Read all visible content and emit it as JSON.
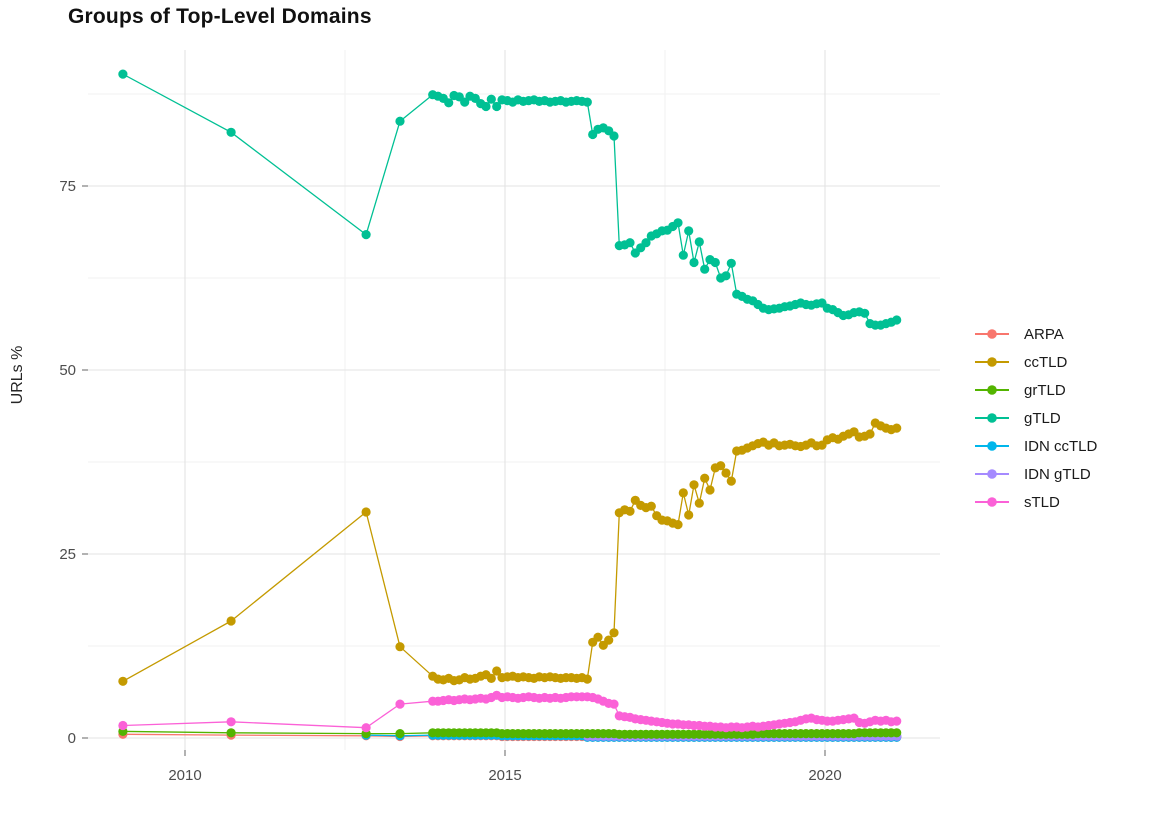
{
  "chart_data": {
    "type": "line",
    "title": "Groups of Top-Level Domains",
    "ylabel": "URLs %",
    "xlabel": "",
    "x_ticks": [
      2010,
      2015,
      2020
    ],
    "y_ticks": [
      0,
      25,
      50,
      75
    ],
    "x_minor": [
      2012.5,
      2017.5
    ],
    "y_minor": [
      12.5,
      37.5,
      62.5,
      87.5
    ],
    "xlim": [
      2008.5,
      2021.8
    ],
    "ylim": [
      -1.6,
      93.5
    ],
    "grid": true,
    "legend_position": "right",
    "monthly_step_years": 0.08333,
    "draw_order": [
      "ARPA",
      "IDN ccTLD",
      "IDN gTLD",
      "grTLD",
      "ccTLD",
      "gTLD",
      "sTLD"
    ],
    "series": [
      {
        "name": "ARPA",
        "color": "#F8766D",
        "early": [
          [
            2009.03,
            0.5
          ],
          [
            2010.72,
            0.4
          ],
          [
            2012.83,
            0.3
          ],
          [
            2013.36,
            0.2
          ]
        ],
        "monthly_start": 2013.87,
        "monthly": [
          0.3,
          0.3,
          0.3,
          0.3,
          0.3,
          0.3,
          0.3,
          0.3,
          0.3,
          0.3,
          0.3,
          0.3,
          0.3,
          0.2,
          0.2,
          0.2,
          0.2,
          0.2,
          0.2,
          0.2,
          0.2,
          0.2,
          0.2,
          0.2,
          0.2,
          0.2,
          0.2,
          0.2,
          0.2,
          0.1,
          0.1,
          0.1,
          0.1,
          0.1,
          0.1,
          0.1,
          0.1,
          0.1,
          0.1,
          0.1,
          0.1,
          0.1,
          0.1,
          0.1,
          0.1,
          0.1,
          0.1,
          0.1,
          0.1,
          0.1,
          0.1,
          0.1,
          0.1,
          0.1,
          0.1,
          0.1,
          0.1,
          0.1,
          0.1,
          0.1,
          0.1,
          0.1,
          0.1,
          0.1,
          0.1,
          0.1,
          0.1,
          0.1,
          0.1,
          0.1,
          0.1,
          0.1,
          0.1,
          0.1,
          0.1,
          0.1,
          0.1,
          0.1,
          0.1,
          0.1,
          0.1,
          0.1,
          0.1,
          0.1,
          0.1,
          0.1,
          0.1,
          0.1
        ]
      },
      {
        "name": "ccTLD",
        "color": "#C49A00",
        "early": [
          [
            2009.03,
            7.7
          ],
          [
            2010.72,
            15.9
          ],
          [
            2012.83,
            30.7
          ],
          [
            2013.36,
            12.4
          ]
        ],
        "monthly_start": 2013.87,
        "monthly": [
          8.4,
          8.0,
          7.9,
          8.1,
          7.8,
          7.9,
          8.2,
          8.0,
          8.1,
          8.4,
          8.6,
          8.1,
          9.1,
          8.2,
          8.3,
          8.4,
          8.2,
          8.3,
          8.2,
          8.1,
          8.3,
          8.2,
          8.3,
          8.2,
          8.1,
          8.2,
          8.2,
          8.1,
          8.2,
          8.0,
          13.0,
          13.7,
          12.6,
          13.3,
          14.3,
          30.6,
          31.0,
          30.8,
          32.3,
          31.6,
          31.3,
          31.5,
          30.2,
          29.6,
          29.5,
          29.2,
          29.0,
          33.3,
          30.3,
          34.4,
          31.9,
          35.3,
          33.7,
          36.7,
          37.0,
          36.0,
          34.9,
          39.0,
          39.1,
          39.4,
          39.7,
          40.0,
          40.2,
          39.8,
          40.1,
          39.7,
          39.8,
          39.9,
          39.7,
          39.6,
          39.8,
          40.1,
          39.7,
          39.8,
          40.5,
          40.8,
          40.6,
          41.0,
          41.3,
          41.6,
          40.9,
          41.0,
          41.3,
          42.8,
          42.4,
          42.1,
          41.9,
          42.1
        ]
      },
      {
        "name": "grTLD",
        "color": "#53B400",
        "early": [
          [
            2009.03,
            0.9
          ],
          [
            2010.72,
            0.7
          ],
          [
            2012.83,
            0.6
          ],
          [
            2013.36,
            0.6
          ]
        ],
        "monthly_start": 2013.87,
        "monthly": [
          0.7,
          0.7,
          0.7,
          0.7,
          0.7,
          0.7,
          0.7,
          0.7,
          0.7,
          0.7,
          0.7,
          0.7,
          0.7,
          0.6,
          0.6,
          0.6,
          0.6,
          0.6,
          0.6,
          0.6,
          0.6,
          0.6,
          0.6,
          0.6,
          0.6,
          0.6,
          0.6,
          0.6,
          0.6,
          0.6,
          0.6,
          0.6,
          0.6,
          0.6,
          0.6,
          0.5,
          0.5,
          0.5,
          0.5,
          0.5,
          0.5,
          0.5,
          0.5,
          0.5,
          0.5,
          0.5,
          0.5,
          0.5,
          0.5,
          0.5,
          0.5,
          0.5,
          0.5,
          0.5,
          0.5,
          0.5,
          0.5,
          0.5,
          0.5,
          0.5,
          0.5,
          0.6,
          0.6,
          0.6,
          0.6,
          0.6,
          0.6,
          0.6,
          0.6,
          0.6,
          0.6,
          0.6,
          0.6,
          0.6,
          0.6,
          0.6,
          0.6,
          0.6,
          0.6,
          0.6,
          0.7,
          0.7,
          0.7,
          0.7,
          0.7,
          0.7,
          0.7,
          0.7
        ]
      },
      {
        "name": "gTLD",
        "color": "#00C094",
        "early": [
          [
            2009.03,
            90.2
          ],
          [
            2010.72,
            82.3
          ],
          [
            2012.83,
            68.4
          ],
          [
            2013.36,
            83.8
          ]
        ],
        "monthly_start": 2013.87,
        "monthly": [
          87.4,
          87.2,
          86.9,
          86.3,
          87.3,
          87.1,
          86.4,
          87.2,
          86.9,
          86.2,
          85.8,
          86.8,
          85.8,
          86.7,
          86.6,
          86.4,
          86.7,
          86.5,
          86.6,
          86.7,
          86.5,
          86.6,
          86.4,
          86.5,
          86.6,
          86.4,
          86.5,
          86.6,
          86.5,
          86.4,
          82.0,
          82.7,
          82.9,
          82.5,
          81.8,
          66.9,
          67.0,
          67.3,
          65.9,
          66.6,
          67.3,
          68.2,
          68.5,
          68.9,
          69.0,
          69.5,
          70.0,
          65.6,
          68.9,
          64.6,
          67.4,
          63.7,
          65.0,
          64.6,
          62.5,
          62.8,
          64.5,
          60.3,
          60.0,
          59.6,
          59.4,
          58.9,
          58.4,
          58.2,
          58.3,
          58.4,
          58.6,
          58.7,
          58.9,
          59.1,
          58.9,
          58.8,
          59.0,
          59.1,
          58.4,
          58.2,
          57.8,
          57.4,
          57.5,
          57.8,
          57.9,
          57.7,
          56.3,
          56.1,
          56.1,
          56.3,
          56.5,
          56.8
        ]
      },
      {
        "name": "IDN ccTLD",
        "color": "#00B6EB",
        "early": [
          [
            2012.83,
            0.4
          ],
          [
            2013.36,
            0.3
          ]
        ],
        "monthly_start": 2013.87,
        "monthly": [
          0.4,
          0.4,
          0.4,
          0.4,
          0.4,
          0.4,
          0.4,
          0.4,
          0.4,
          0.4,
          0.4,
          0.4,
          0.4,
          0.3,
          0.3,
          0.3,
          0.3,
          0.3,
          0.3,
          0.3,
          0.3,
          0.3,
          0.3,
          0.3,
          0.3,
          0.3,
          0.3,
          0.3,
          0.3,
          0.1,
          0.1,
          0.1,
          0.1,
          0.1,
          0.1,
          0.1,
          0.1,
          0.1,
          0.1,
          0.1,
          0.1,
          0.1,
          0.1,
          0.1,
          0.1,
          0.1,
          0.1,
          0.1,
          0.1,
          0.1,
          0.1,
          0.1,
          0.1,
          0.1,
          0.1,
          0.1,
          0.1,
          0.1,
          0.1,
          0.1,
          0.1,
          0.1,
          0.1,
          0.1,
          0.1,
          0.1,
          0.1,
          0.1,
          0.1,
          0.1,
          0.1,
          0.1,
          0.1,
          0.1,
          0.1,
          0.1,
          0.1,
          0.1,
          0.1,
          0.1,
          0.1,
          0.1,
          0.1,
          0.1,
          0.1,
          0.1,
          0.1,
          0.1
        ]
      },
      {
        "name": "IDN gTLD",
        "color": "#A58AFF",
        "early": [],
        "monthly_start": 2016.29,
        "monthly": [
          0.25,
          0.25,
          0.25,
          0.25,
          0.25,
          0.25,
          0.25,
          0.25,
          0.25,
          0.25,
          0.25,
          0.25,
          0.25,
          0.25,
          0.25,
          0.25,
          0.25,
          0.25,
          0.25,
          0.25,
          0.25,
          0.25,
          0.25,
          0.25,
          0.25,
          0.25,
          0.25,
          0.25,
          0.25,
          0.25,
          0.25,
          0.25,
          0.25,
          0.25,
          0.25,
          0.25,
          0.25,
          0.25,
          0.25,
          0.25,
          0.25,
          0.25,
          0.25,
          0.25,
          0.25,
          0.25,
          0.25,
          0.25,
          0.25,
          0.25,
          0.25,
          0.25,
          0.25,
          0.25,
          0.25,
          0.25,
          0.25,
          0.25,
          0.25
        ]
      },
      {
        "name": "sTLD",
        "color": "#FB61D7",
        "early": [
          [
            2009.03,
            1.7
          ],
          [
            2010.72,
            2.2
          ],
          [
            2012.83,
            1.4
          ],
          [
            2013.36,
            4.6
          ]
        ],
        "monthly_start": 2013.87,
        "monthly": [
          5.0,
          5.0,
          5.1,
          5.2,
          5.1,
          5.2,
          5.3,
          5.2,
          5.3,
          5.4,
          5.3,
          5.5,
          5.8,
          5.5,
          5.6,
          5.5,
          5.4,
          5.5,
          5.6,
          5.5,
          5.4,
          5.5,
          5.4,
          5.5,
          5.4,
          5.5,
          5.6,
          5.6,
          5.6,
          5.6,
          5.5,
          5.3,
          5.0,
          4.7,
          4.6,
          3.0,
          2.9,
          2.8,
          2.6,
          2.5,
          2.4,
          2.3,
          2.2,
          2.1,
          2.0,
          1.9,
          1.9,
          1.8,
          1.8,
          1.7,
          1.7,
          1.6,
          1.6,
          1.5,
          1.5,
          1.4,
          1.5,
          1.5,
          1.4,
          1.5,
          1.6,
          1.5,
          1.6,
          1.7,
          1.8,
          1.9,
          2.0,
          2.1,
          2.2,
          2.4,
          2.6,
          2.7,
          2.5,
          2.4,
          2.3,
          2.3,
          2.4,
          2.5,
          2.6,
          2.7,
          2.1,
          2.0,
          2.2,
          2.4,
          2.3,
          2.4,
          2.2,
          2.3
        ]
      }
    ]
  }
}
